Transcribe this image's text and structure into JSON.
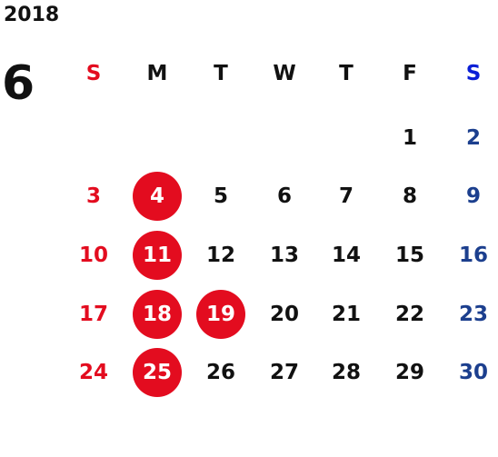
{
  "calendar": {
    "year": "2018",
    "month": "6",
    "weekday_headers": [
      "S",
      "M",
      "T",
      "W",
      "T",
      "F",
      "S"
    ],
    "weeks": [
      [
        "",
        "",
        "",
        "",
        "",
        "1",
        "2"
      ],
      [
        "3",
        "4",
        "5",
        "6",
        "7",
        "8",
        "9"
      ],
      [
        "10",
        "11",
        "12",
        "13",
        "14",
        "15",
        "16"
      ],
      [
        "17",
        "18",
        "19",
        "20",
        "21",
        "22",
        "23"
      ],
      [
        "24",
        "25",
        "26",
        "27",
        "28",
        "29",
        "30"
      ]
    ],
    "highlighted_days": [
      "4",
      "11",
      "18",
      "19",
      "25"
    ],
    "colors": {
      "sunday": "#e30c1f",
      "saturday": "#1c3f8e",
      "saturday_header": "#0b1fd6",
      "weekday": "#111111",
      "highlight": "#e30c1f"
    }
  }
}
